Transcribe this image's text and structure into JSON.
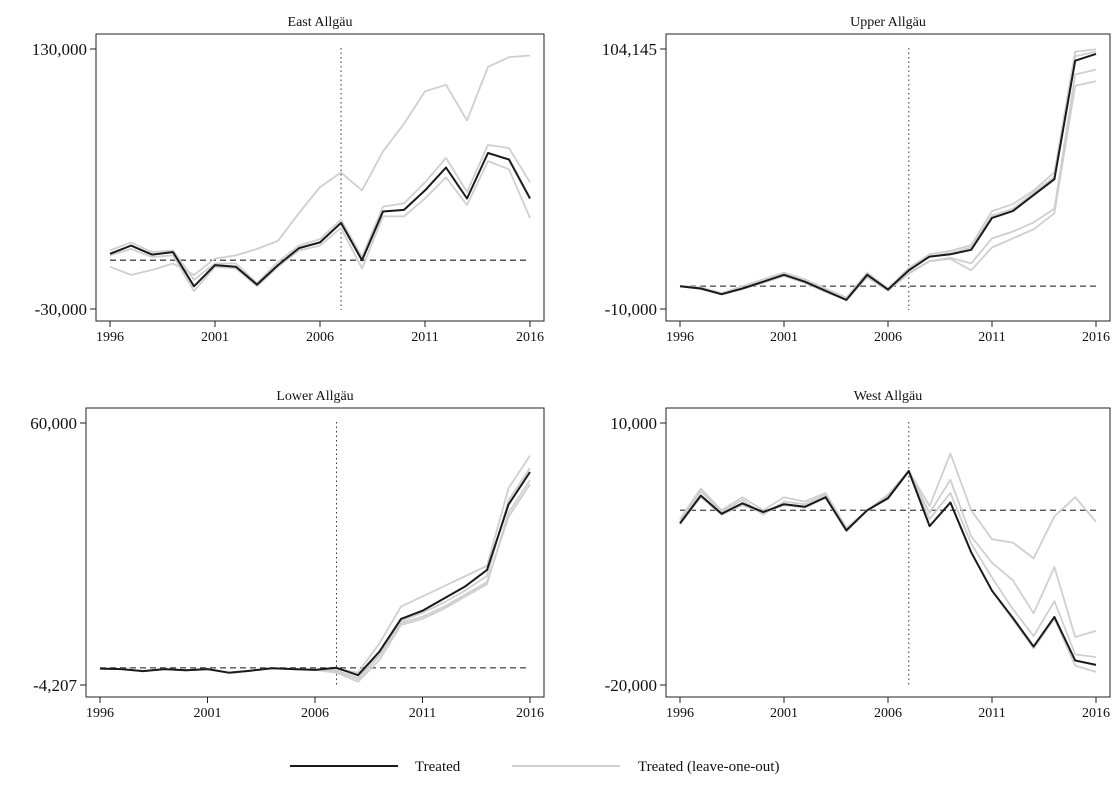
{
  "chart_data": [
    {
      "type": "line",
      "title": "East Allgäu",
      "x": [
        1996,
        1997,
        1998,
        1999,
        2000,
        2001,
        2002,
        2003,
        2004,
        2005,
        2006,
        2007,
        2008,
        2009,
        2010,
        2011,
        2012,
        2013,
        2014,
        2015,
        2016
      ],
      "ylim": [
        -30000,
        130000
      ],
      "yticks": [
        "130,000",
        "-30,000"
      ],
      "xticks": [
        "1996",
        "2001",
        "2006",
        "2011",
        "2016"
      ],
      "treatment_year": 2007,
      "baseline": 0,
      "series": [
        {
          "name": "Treated",
          "values": [
            4000,
            9000,
            3500,
            5000,
            -16000,
            -3000,
            -4000,
            -15000,
            -3000,
            7500,
            11000,
            23000,
            0,
            30000,
            31000,
            43000,
            57000,
            38000,
            66000,
            62000,
            38000
          ]
        },
        {
          "values": [
            6000,
            11000,
            5000,
            6000,
            -12000,
            -2000,
            -2000,
            -14000,
            -1000,
            9000,
            13000,
            25000,
            2000,
            33000,
            35000,
            48000,
            63000,
            42000,
            71000,
            69000,
            48000
          ]
        },
        {
          "values": [
            3000,
            7000,
            2000,
            3000,
            -19000,
            -4000,
            -5000,
            -16000,
            -4000,
            6000,
            9000,
            20000,
            -5000,
            27000,
            27000,
            38000,
            51000,
            34000,
            61000,
            56000,
            26000
          ]
        },
        {
          "values": [
            -4000,
            -9000,
            -6000,
            -2000,
            -9000,
            1000,
            3000,
            7000,
            12000,
            29000,
            45000,
            54000,
            43000,
            67000,
            84000,
            104000,
            108000,
            86000,
            119000,
            125000,
            126000
          ]
        }
      ]
    },
    {
      "type": "line",
      "title": "Upper Allgäu",
      "x": [
        1996,
        1997,
        1998,
        1999,
        2000,
        2001,
        2002,
        2003,
        2004,
        2005,
        2006,
        2007,
        2008,
        2009,
        2010,
        2011,
        2012,
        2013,
        2014,
        2015,
        2016
      ],
      "ylim": [
        -10000,
        104145
      ],
      "yticks": [
        "104,145",
        "-10,000"
      ],
      "xticks": [
        "1996",
        "2001",
        "2006",
        "2011",
        "2016"
      ],
      "treatment_year": 2007,
      "baseline": 0,
      "series": [
        {
          "name": "Treated",
          "values": [
            0,
            -1000,
            -3500,
            -1000,
            2000,
            5000,
            2000,
            -2000,
            -6000,
            5000,
            -1500,
            7000,
            13000,
            14000,
            16000,
            30000,
            33000,
            40000,
            47000,
            99000,
            102000
          ]
        },
        {
          "values": [
            0,
            -500,
            -3000,
            0,
            3000,
            6000,
            3000,
            -1000,
            -5000,
            6000,
            -1000,
            8000,
            14000,
            15500,
            18000,
            33000,
            36000,
            42000,
            50000,
            103000,
            104000
          ]
        },
        {
          "values": [
            0,
            -1000,
            -3500,
            -1000,
            2000,
            5000,
            2000,
            -2000,
            -6000,
            5000,
            -1500,
            7000,
            13000,
            14500,
            17000,
            31000,
            34000,
            41000,
            48000,
            101000,
            103000
          ]
        },
        {
          "values": [
            0,
            -1200,
            -3600,
            -1200,
            1500,
            4500,
            1500,
            -2500,
            -6000,
            4000,
            -2000,
            6000,
            11000,
            12000,
            7000,
            17000,
            21000,
            25000,
            32000,
            88000,
            90000
          ]
        },
        {
          "values": [
            0,
            -1200,
            -3600,
            -1200,
            1500,
            4500,
            1500,
            -2500,
            -6000,
            4000,
            -2000,
            5500,
            11000,
            12500,
            10000,
            21000,
            24000,
            28000,
            34000,
            93000,
            95000
          ]
        }
      ]
    },
    {
      "type": "line",
      "title": "Lower Allgäu",
      "x": [
        1996,
        1997,
        1998,
        1999,
        2000,
        2001,
        2002,
        2003,
        2004,
        2005,
        2006,
        2007,
        2008,
        2009,
        2010,
        2011,
        2012,
        2013,
        2014,
        2015,
        2016
      ],
      "ylim": [
        -4207,
        60000
      ],
      "yticks": [
        "60,000",
        "-4,207"
      ],
      "xticks": [
        "1996",
        "2001",
        "2006",
        "2011",
        "2016"
      ],
      "treatment_year": 2007,
      "baseline": 0,
      "series": [
        {
          "name": "Treated",
          "values": [
            -200,
            -300,
            -800,
            -300,
            -600,
            -300,
            -1200,
            -700,
            -100,
            -300,
            -500,
            0,
            -1800,
            4000,
            12000,
            14000,
            17000,
            20000,
            24000,
            40000,
            48000
          ]
        },
        {
          "values": [
            -200,
            -300,
            -800,
            -300,
            -600,
            -300,
            -1200,
            -700,
            -100,
            -300,
            -500,
            -300,
            -1200,
            6000,
            15000,
            17500,
            20000,
            22500,
            25000,
            44000,
            52000
          ]
        },
        {
          "values": [
            -200,
            -300,
            -800,
            -300,
            -600,
            -300,
            -1200,
            -700,
            -100,
            -300,
            -500,
            -800,
            -2800,
            3000,
            11000,
            12500,
            15000,
            18000,
            21000,
            37000,
            45000
          ]
        },
        {
          "values": [
            -200,
            -300,
            -800,
            -300,
            -600,
            -300,
            -1200,
            -700,
            -100,
            -300,
            -500,
            -1200,
            -3400,
            2000,
            10500,
            12000,
            14500,
            17500,
            20500,
            38000,
            46000
          ]
        },
        {
          "values": [
            -200,
            -300,
            -800,
            -300,
            -600,
            -300,
            -1200,
            -700,
            -100,
            -300,
            -500,
            -600,
            -2500,
            3500,
            11500,
            13500,
            16000,
            19000,
            22500,
            41000,
            49000
          ]
        }
      ]
    },
    {
      "type": "line",
      "title": "West Allgäu",
      "x": [
        1996,
        1997,
        1998,
        1999,
        2000,
        2001,
        2002,
        2003,
        2004,
        2005,
        2006,
        2007,
        2008,
        2009,
        2010,
        2011,
        2012,
        2013,
        2014,
        2015,
        2016
      ],
      "ylim": [
        -20000,
        10000
      ],
      "yticks": [
        "10,000",
        "-20,000"
      ],
      "xticks": [
        "1996",
        "2001",
        "2006",
        "2011",
        "2016"
      ],
      "treatment_year": 2007,
      "baseline": 0,
      "series": [
        {
          "name": "Treated",
          "values": [
            -1500,
            1700,
            -400,
            800,
            -200,
            700,
            400,
            1500,
            -2300,
            0,
            1400,
            4500,
            -1800,
            900,
            -4800,
            -9200,
            -12300,
            -15600,
            -12200,
            -17200,
            -17700
          ]
        },
        {
          "values": [
            -1000,
            2500,
            0,
            1500,
            0,
            1500,
            1000,
            2000,
            -2000,
            0,
            1800,
            4500,
            500,
            6500,
            0,
            -3300,
            -3700,
            -5500,
            -700,
            1500,
            -1300
          ]
        },
        {
          "values": [
            -1200,
            2200,
            -200,
            1200,
            -500,
            1000,
            700,
            1800,
            -2100,
            0,
            1600,
            4500,
            -300,
            3500,
            -3000,
            -6000,
            -8000,
            -11800,
            -6500,
            -14500,
            -13800
          ]
        },
        {
          "values": [
            -1500,
            1700,
            -400,
            800,
            -200,
            700,
            400,
            1500,
            -2300,
            0,
            1400,
            4500,
            -1000,
            2000,
            -3800,
            -7700,
            -11300,
            -14400,
            -10400,
            -16500,
            -16800
          ]
        },
        {
          "values": [
            -1600,
            1500,
            -500,
            600,
            -300,
            600,
            300,
            1400,
            -2400,
            0,
            1300,
            4400,
            -1800,
            900,
            -4800,
            -9200,
            -12500,
            -15800,
            -12400,
            -17800,
            -18500
          ]
        }
      ]
    }
  ],
  "legend": {
    "treated_label": "Treated",
    "loo_label": "Treated (leave-one-out)"
  },
  "colors": {
    "treated": "#1a1a1a",
    "loo": "#cfcfcf",
    "reference": "#555555"
  }
}
